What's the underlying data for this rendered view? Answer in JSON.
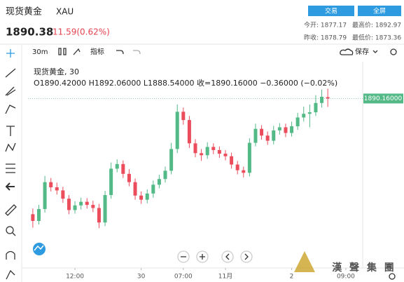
{
  "header": {
    "title": "现货黄金",
    "symbol": "XAU",
    "price": "1890.38",
    "change": "11.59(0.62%)",
    "buttons": [
      "交易",
      "全屏"
    ],
    "stats": [
      "今开: 1877.17",
      "最高价: 1892.97",
      "昨收: 1878.79",
      "最低价: 1873.36"
    ]
  },
  "toolbar": {
    "interval": "30m",
    "indicators": "指标",
    "save": "保存"
  },
  "watermark": "漢 聲 集 團",
  "chart_data": {
    "type": "candlestick",
    "legend_title": "现货黄金, 30",
    "legend_values": "O1890.42000 H1892.06000 L1888.54000 收=1890.16000 −0.36000 (−0.02%)",
    "last_price_label": "1890.16000",
    "up_color": "#53b987",
    "down_color": "#eb4d5c",
    "xlim": [
      -0.8,
      54.8
    ],
    "ylim": [
      1857,
      1897
    ],
    "xticks": [
      {
        "value": 7,
        "label": "12:00"
      },
      {
        "value": 18,
        "label": "30"
      },
      {
        "value": 25,
        "label": "07:00"
      },
      {
        "value": 32,
        "label": "11月"
      },
      {
        "value": 43,
        "label": "2"
      },
      {
        "value": 52,
        "label": "09:00"
      }
    ],
    "x": [
      0,
      1,
      2,
      3,
      4,
      5,
      6,
      7,
      8,
      9,
      10,
      11,
      12,
      13,
      14,
      15,
      16,
      17,
      18,
      19,
      20,
      21,
      22,
      23,
      24,
      25,
      26,
      27,
      28,
      29,
      30,
      31,
      32,
      33,
      34,
      35,
      36,
      37,
      38,
      39,
      40,
      41,
      42,
      43,
      44,
      45,
      46,
      47,
      48,
      49
    ],
    "open": [
      1867.8,
      1866.5,
      1868.8,
      1874.0,
      1873.0,
      1872.4,
      1870.8,
      1868.6,
      1869.5,
      1870.2,
      1869.6,
      1869.0,
      1866.2,
      1871.5,
      1876.6,
      1877.5,
      1875.6,
      1874.0,
      1871.4,
      1870.6,
      1871.8,
      1873.5,
      1874.6,
      1876.2,
      1880.4,
      1887.6,
      1886.0,
      1881.5,
      1879.6,
      1879.2,
      1880.8,
      1880.2,
      1879.5,
      1879.0,
      1877.4,
      1876.3,
      1875.8,
      1881.6,
      1884.3,
      1883.0,
      1882.0,
      1884.0,
      1884.6,
      1883.5,
      1884.8,
      1886.5,
      1887.2,
      1887.5,
      1889.3,
      1890.42
    ],
    "high": [
      1868.9,
      1869.6,
      1875.2,
      1874.8,
      1873.9,
      1873.1,
      1871.5,
      1870.3,
      1871.0,
      1870.9,
      1870.4,
      1869.8,
      1872.3,
      1877.8,
      1878.4,
      1878.2,
      1876.5,
      1874.7,
      1872.2,
      1872.6,
      1874.3,
      1875.4,
      1877.0,
      1881.6,
      1889.0,
      1888.4,
      1886.8,
      1882.3,
      1880.4,
      1881.7,
      1881.5,
      1880.9,
      1880.2,
      1879.7,
      1878.1,
      1877.0,
      1882.5,
      1885.3,
      1885.0,
      1883.8,
      1884.9,
      1885.4,
      1885.3,
      1885.7,
      1887.4,
      1888.6,
      1889.0,
      1890.8,
      1891.9,
      1892.06
    ],
    "low": [
      1865.2,
      1865.8,
      1868.1,
      1872.2,
      1871.6,
      1870.0,
      1867.8,
      1867.9,
      1868.7,
      1868.9,
      1868.2,
      1865.1,
      1865.5,
      1870.8,
      1875.9,
      1874.8,
      1873.2,
      1870.6,
      1869.8,
      1869.9,
      1871.0,
      1872.8,
      1873.9,
      1875.5,
      1879.6,
      1885.1,
      1880.6,
      1878.8,
      1878.1,
      1878.5,
      1879.4,
      1878.7,
      1878.2,
      1876.6,
      1875.5,
      1874.9,
      1875.1,
      1880.9,
      1882.2,
      1881.2,
      1881.3,
      1883.2,
      1882.7,
      1882.8,
      1884.1,
      1885.7,
      1884.6,
      1886.8,
      1888.4,
      1888.54
    ],
    "close": [
      1866.5,
      1868.8,
      1874.0,
      1873.0,
      1872.4,
      1870.8,
      1868.6,
      1869.5,
      1870.2,
      1869.6,
      1869.0,
      1866.2,
      1871.5,
      1876.6,
      1877.5,
      1875.6,
      1874.0,
      1871.4,
      1870.6,
      1871.8,
      1873.5,
      1874.6,
      1876.2,
      1880.4,
      1887.6,
      1886.0,
      1881.5,
      1879.6,
      1879.2,
      1880.8,
      1880.2,
      1879.5,
      1879.0,
      1877.4,
      1876.3,
      1875.8,
      1881.6,
      1884.3,
      1883.0,
      1882.0,
      1884.0,
      1884.6,
      1883.5,
      1884.8,
      1886.5,
      1887.2,
      1887.5,
      1889.3,
      1890.5,
      1890.16
    ]
  }
}
